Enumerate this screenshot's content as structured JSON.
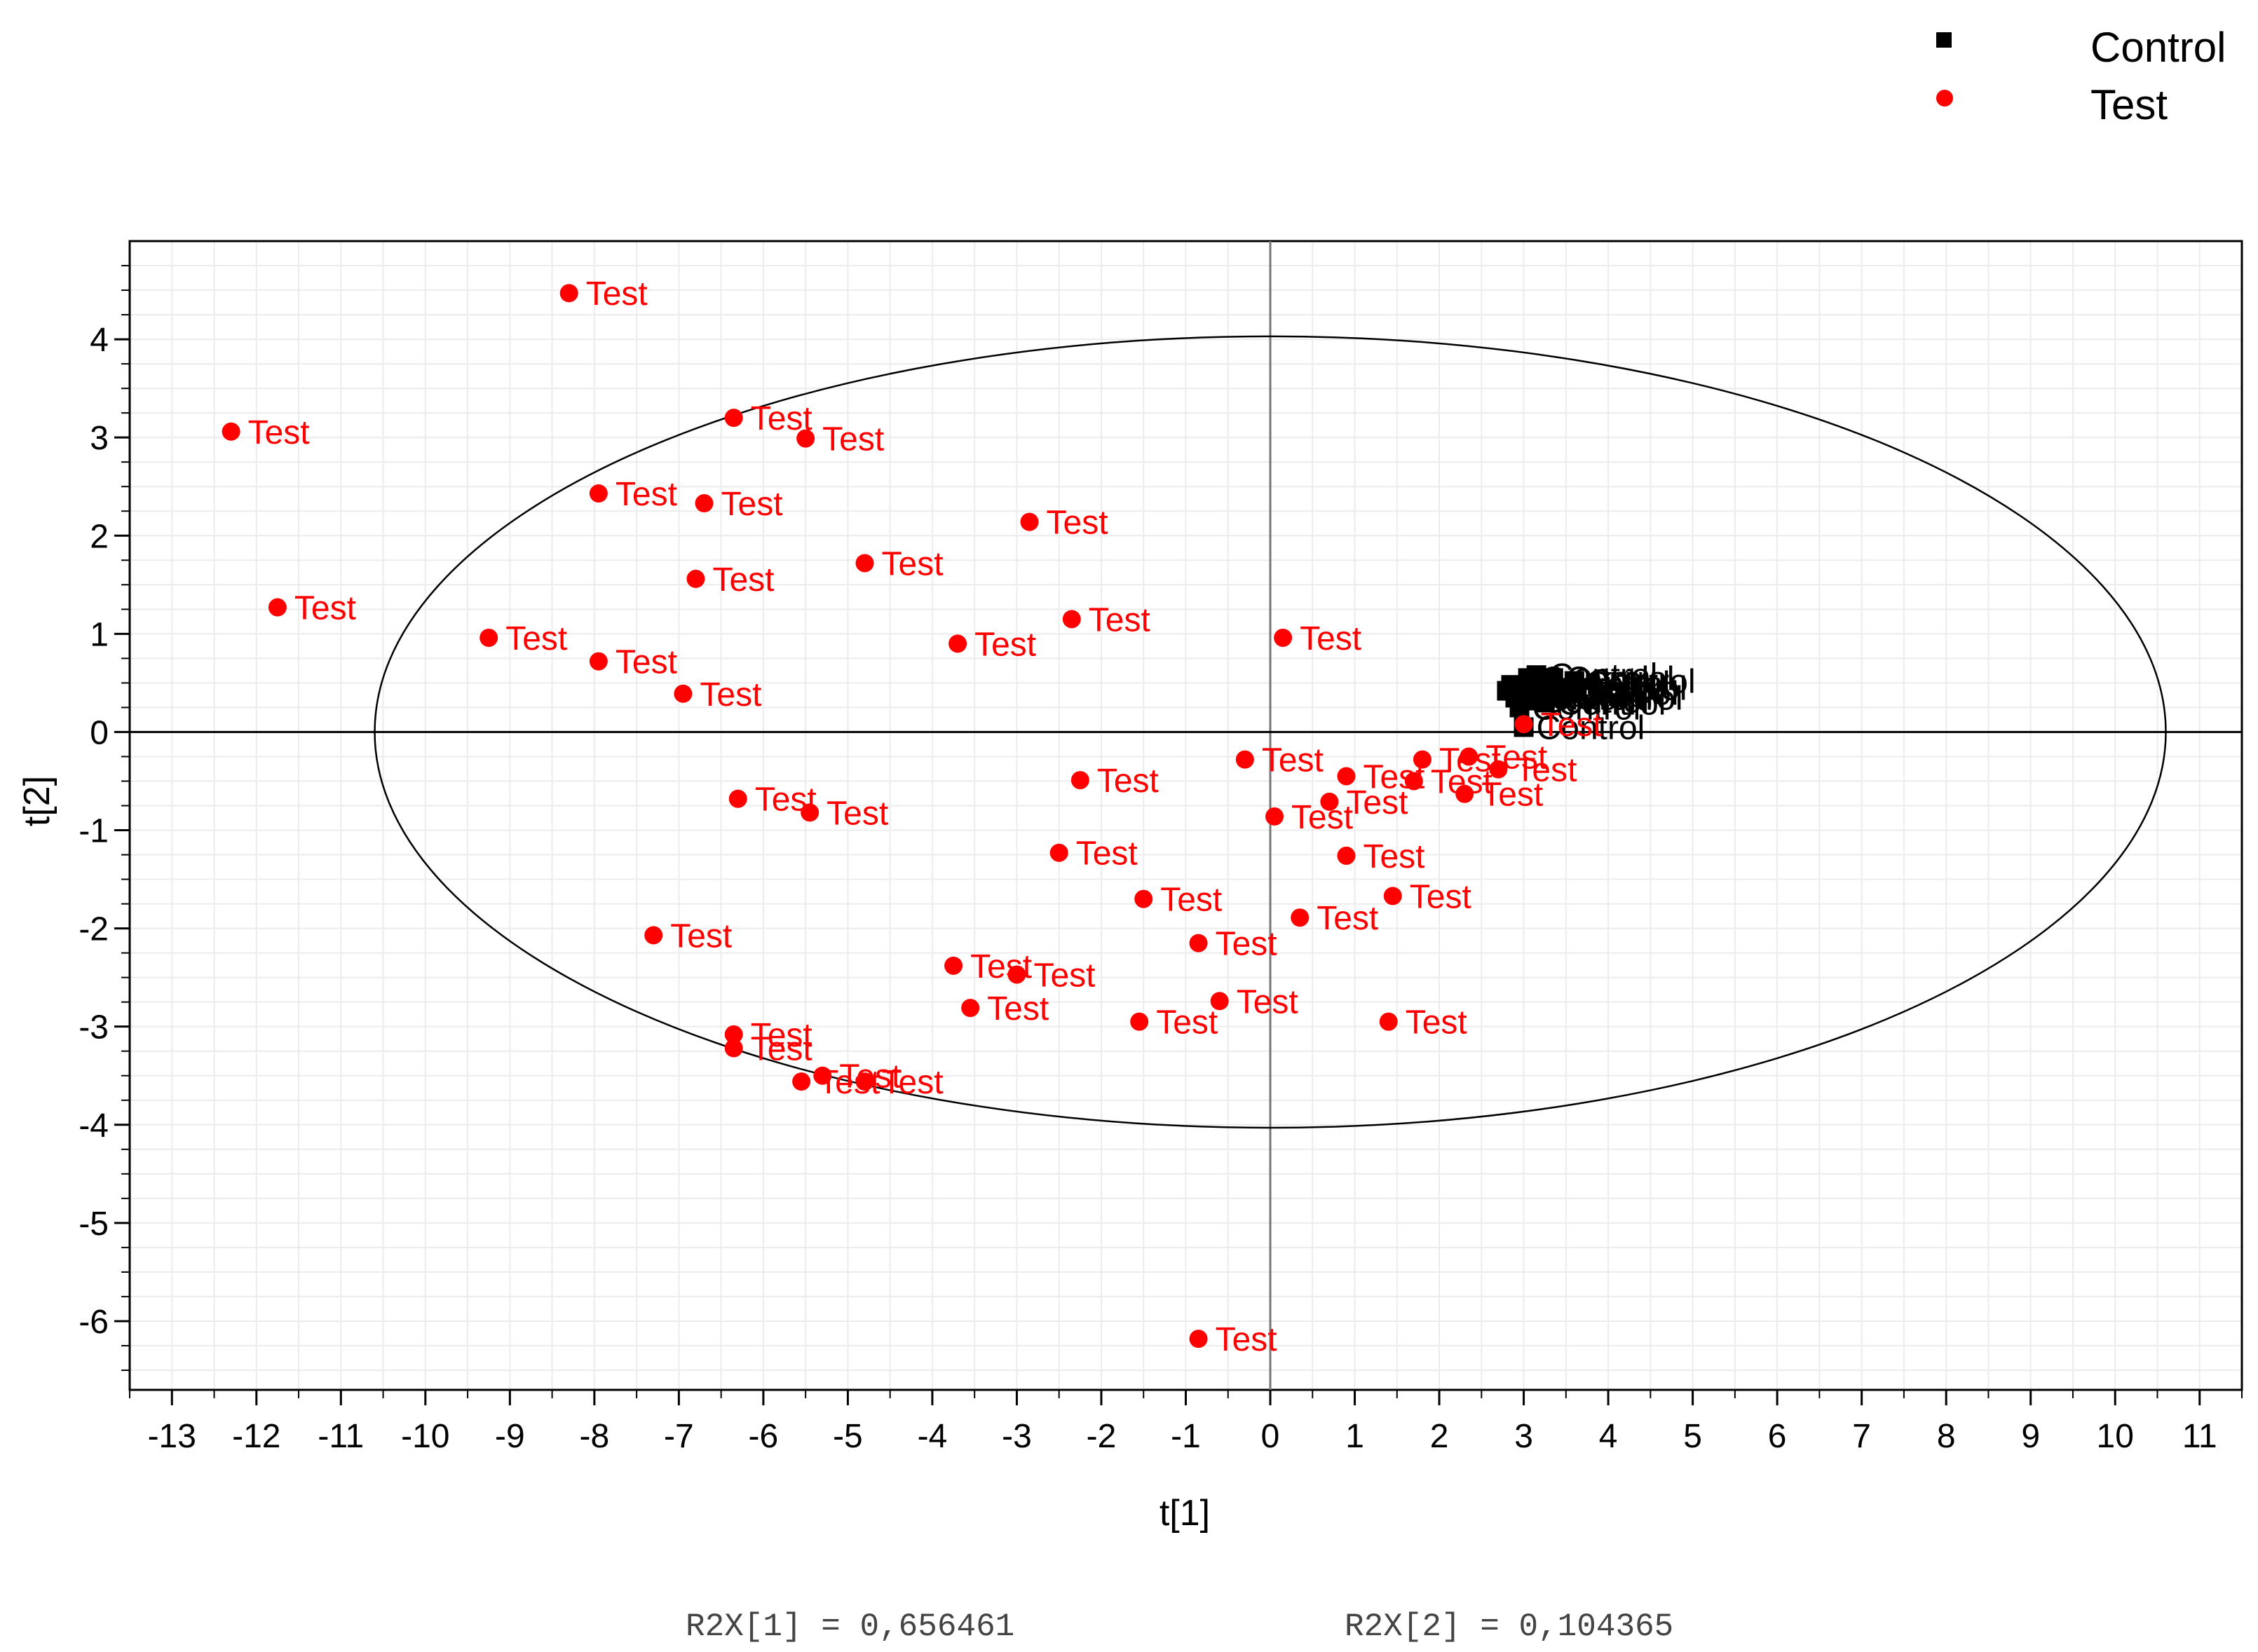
{
  "chart_data": {
    "type": "scatter",
    "xlabel": "t[1]",
    "ylabel": "t[2]",
    "xlim": [
      -13.5,
      11.5
    ],
    "ylim": [
      -6.7,
      5.0
    ],
    "x_ticks": [
      "-13",
      "-12",
      "-11",
      "-10",
      "-9",
      "-8",
      "-7",
      "-6",
      "-5",
      "-4",
      "-3",
      "-2",
      "-1",
      "0",
      "1",
      "2",
      "3",
      "4",
      "5",
      "6",
      "7",
      "8",
      "9",
      "10",
      "11"
    ],
    "y_ticks": [
      "4",
      "3",
      "2",
      "1",
      "0",
      "-1",
      "-2",
      "-3",
      "-4",
      "-5",
      "-6"
    ],
    "grid": true,
    "hotelling_ellipse": {
      "center": [
        0,
        0
      ],
      "rx": 10.6,
      "ry": 4.03
    },
    "legend": {
      "position": "top-right",
      "entries": [
        {
          "name": "Control",
          "marker": "square",
          "color": "#000000"
        },
        {
          "name": "Test",
          "marker": "circle",
          "color": "#ff0000"
        }
      ]
    },
    "footer": [
      "R2X[1] = 0,656461",
      "R2X[2] = 0,104365"
    ],
    "series": [
      {
        "name": "Control",
        "marker": "square",
        "color": "#000000",
        "point_label": "Control",
        "points": [
          [
            3.0,
            0.05
          ],
          [
            2.95,
            0.25
          ],
          [
            2.9,
            0.35
          ],
          [
            3.0,
            0.45
          ],
          [
            3.05,
            0.55
          ],
          [
            3.1,
            0.38
          ],
          [
            3.2,
            0.42
          ],
          [
            3.3,
            0.5
          ],
          [
            3.4,
            0.4
          ],
          [
            2.85,
            0.48
          ],
          [
            3.5,
            0.45
          ],
          [
            3.6,
            0.52
          ],
          [
            3.25,
            0.3
          ],
          [
            3.35,
            0.55
          ],
          [
            2.8,
            0.42
          ],
          [
            3.15,
            0.58
          ],
          [
            3.45,
            0.35
          ],
          [
            3.05,
            0.32
          ]
        ]
      },
      {
        "name": "Test",
        "marker": "circle",
        "color": "#ff0000",
        "point_label": "Test",
        "points": [
          [
            -8.3,
            4.47
          ],
          [
            -12.3,
            3.06
          ],
          [
            -11.75,
            1.27
          ],
          [
            -9.25,
            0.96
          ],
          [
            -6.35,
            3.2
          ],
          [
            -5.5,
            2.99
          ],
          [
            -7.95,
            2.43
          ],
          [
            -6.7,
            2.33
          ],
          [
            -2.85,
            2.14
          ],
          [
            -4.8,
            1.72
          ],
          [
            -6.8,
            1.56
          ],
          [
            -2.35,
            1.15
          ],
          [
            -3.7,
            0.9
          ],
          [
            -7.95,
            0.72
          ],
          [
            -6.95,
            0.39
          ],
          [
            0.15,
            0.96
          ],
          [
            -6.3,
            -0.68
          ],
          [
            -5.45,
            -0.82
          ],
          [
            -2.25,
            -0.49
          ],
          [
            -0.3,
            -0.28
          ],
          [
            0.9,
            -0.45
          ],
          [
            0.7,
            -0.71
          ],
          [
            0.05,
            -0.86
          ],
          [
            1.8,
            -0.28
          ],
          [
            1.7,
            -0.5
          ],
          [
            2.35,
            -0.25
          ],
          [
            2.7,
            -0.38
          ],
          [
            2.3,
            -0.63
          ],
          [
            -2.5,
            -1.23
          ],
          [
            -1.5,
            -1.7
          ],
          [
            0.9,
            -1.26
          ],
          [
            1.45,
            -1.67
          ],
          [
            -7.3,
            -2.07
          ],
          [
            -0.85,
            -2.15
          ],
          [
            0.35,
            -1.89
          ],
          [
            -3.75,
            -2.38
          ],
          [
            -3.0,
            -2.47
          ],
          [
            -3.55,
            -2.81
          ],
          [
            -0.6,
            -2.74
          ],
          [
            -1.55,
            -2.95
          ],
          [
            1.4,
            -2.95
          ],
          [
            -6.35,
            -3.08
          ],
          [
            -6.35,
            -3.22
          ],
          [
            -5.3,
            -3.5
          ],
          [
            -5.55,
            -3.56
          ],
          [
            -4.8,
            -3.56
          ],
          [
            3.0,
            0.08
          ],
          [
            -0.85,
            -6.18
          ]
        ]
      }
    ]
  }
}
